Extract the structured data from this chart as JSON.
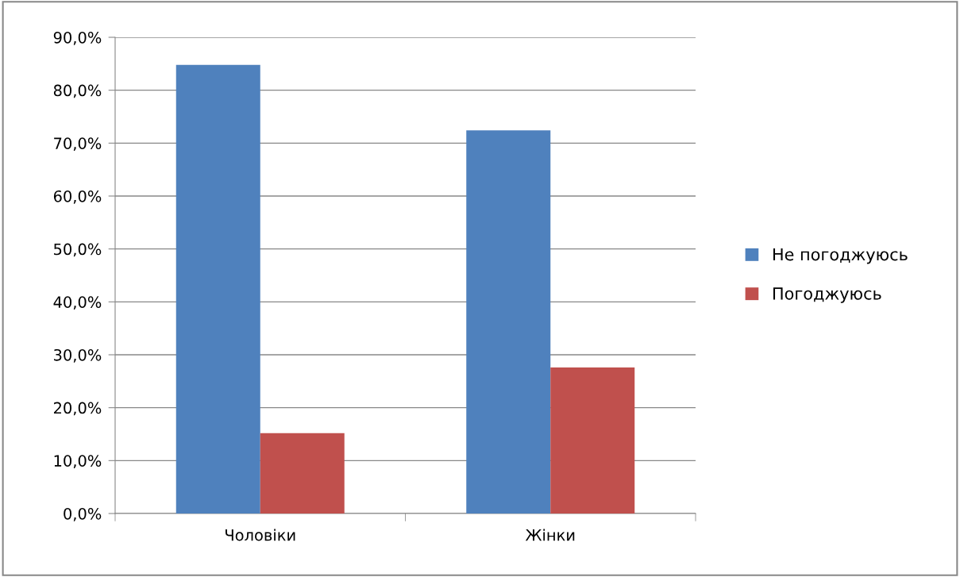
{
  "chart_data": {
    "type": "bar",
    "categories": [
      "Чоловіки",
      "Жінки"
    ],
    "series": [
      {
        "name": "Не погоджуюсь",
        "color": "#4f81bd",
        "values": [
          84.8,
          72.4
        ]
      },
      {
        "name": "Погоджуюсь",
        "color": "#c0504d",
        "values": [
          15.2,
          27.6
        ]
      }
    ],
    "ylim": [
      0,
      90
    ],
    "yticks": [
      {
        "value": 0,
        "label": "0,0%"
      },
      {
        "value": 10,
        "label": "10,0%"
      },
      {
        "value": 20,
        "label": "20,0%"
      },
      {
        "value": 30,
        "label": "30,0%"
      },
      {
        "value": 40,
        "label": "40,0%"
      },
      {
        "value": 50,
        "label": "50,0%"
      },
      {
        "value": 60,
        "label": "60,0%"
      },
      {
        "value": 70,
        "label": "70,0%"
      },
      {
        "value": 80,
        "label": "80,0%"
      },
      {
        "value": 90,
        "label": "90,0%"
      }
    ],
    "grid": "y",
    "legend": "right"
  }
}
